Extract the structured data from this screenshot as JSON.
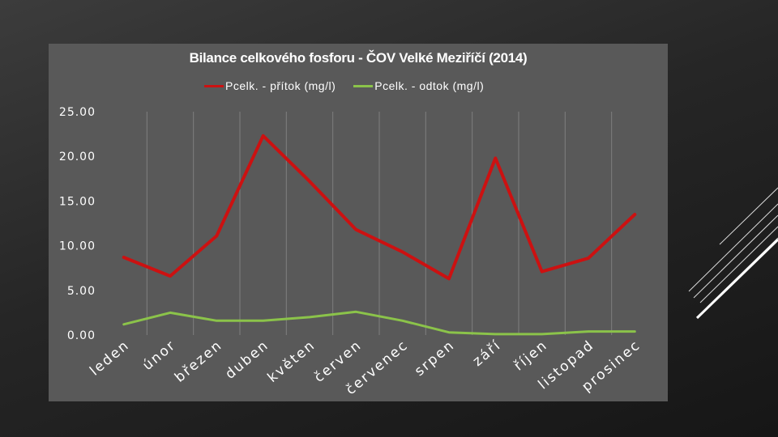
{
  "chart_data": {
    "type": "line",
    "title": "Bilance celkového fosforu - ČOV Velké Meziříčí (2014)",
    "categories": [
      "leden",
      "únor",
      "březen",
      "duben",
      "květen",
      "červen",
      "červenec",
      "srpen",
      "září",
      "říjen",
      "listopad",
      "prosinec"
    ],
    "series": [
      {
        "name": "Pcelk. - přítok (mg/l)",
        "color": "#cc1111",
        "values": [
          8.7,
          6.6,
          11.1,
          22.3,
          17.2,
          11.8,
          9.3,
          6.3,
          19.8,
          7.1,
          8.6,
          13.5
        ]
      },
      {
        "name": "Pcelk. - odtok (mg/l)",
        "color": "#8bc34a",
        "values": [
          1.2,
          2.5,
          1.6,
          1.6,
          2.0,
          2.6,
          1.6,
          0.3,
          0.1,
          0.1,
          0.4,
          0.4
        ]
      }
    ],
    "yticks": [
      "0.00",
      "5.00",
      "10.00",
      "15.00",
      "20.00",
      "25.00"
    ],
    "ylim": [
      0,
      25
    ],
    "grid": "vertical",
    "legend": "top"
  }
}
